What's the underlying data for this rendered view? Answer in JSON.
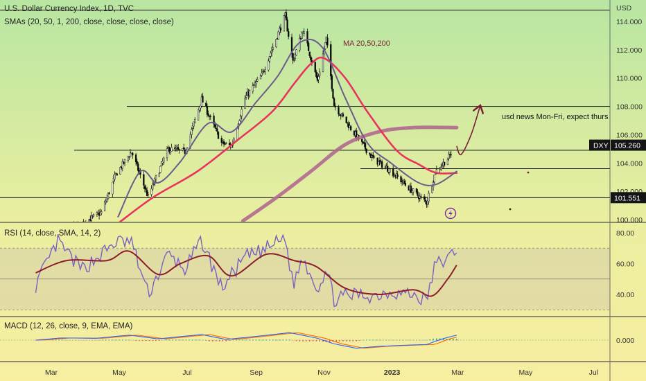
{
  "header": {
    "title": "U.S. Dollar Currency Index, 1D, TVC",
    "sma_legend": "SMAs (20, 50, 1, 200, close, close, close, close)"
  },
  "price_scale": {
    "currency": "USD",
    "ticks": [
      {
        "value": 114,
        "label": "114.000"
      },
      {
        "value": 112,
        "label": "112.000"
      },
      {
        "value": 110,
        "label": "110.000"
      },
      {
        "value": 108,
        "label": "108.000"
      },
      {
        "value": 106,
        "label": "106.000"
      },
      {
        "value": 104,
        "label": "104.000"
      },
      {
        "value": 102,
        "label": "102.000"
      },
      {
        "value": 100,
        "label": "100.000"
      }
    ],
    "ylim": [
      99.9,
      115.4
    ],
    "symbol_badge": {
      "symbol": "DXY",
      "price": "105.260",
      "value": 105.26
    },
    "level_badge": {
      "label": "101.551",
      "value": 101.551
    }
  },
  "rsi_panel": {
    "legend": "RSI (14, close, SMA, 14, 2)",
    "ticks": [
      {
        "value": 80,
        "label": "80.00"
      },
      {
        "value": 60,
        "label": "60.00"
      },
      {
        "value": 40,
        "label": "40.00"
      }
    ],
    "ylim": [
      29,
      85
    ],
    "band": [
      70,
      30
    ],
    "midline": 50
  },
  "macd_panel": {
    "legend": "MACD (12, 26, close, 9, EMA, EMA)",
    "ticks": [
      {
        "value": 0,
        "label": "0.000"
      }
    ]
  },
  "time_axis": {
    "labels": [
      {
        "label": "Mar",
        "bold": false
      },
      {
        "label": "May",
        "bold": false
      },
      {
        "label": "Jul",
        "bold": false
      },
      {
        "label": "Sep",
        "bold": false
      },
      {
        "label": "Nov",
        "bold": false
      },
      {
        "label": "2023",
        "bold": true
      },
      {
        "label": "Mar",
        "bold": false
      },
      {
        "label": "May",
        "bold": false
      },
      {
        "label": "Jul",
        "bold": false
      }
    ]
  },
  "annotations": {
    "ma_label": "MA 20,50,200",
    "news_note": "usd news Mon-Fri, expect thurs"
  },
  "horizontal_levels": [
    114.8,
    108.0,
    104.9,
    103.6,
    101.55
  ],
  "colors": {
    "up_candle": "#0a0a0a",
    "down_candle": "#0a0a0a",
    "sma20": "#6b5b8c",
    "sma50": "#e8335f",
    "sma200": "#b0698f",
    "rsi": "#7b5fc4",
    "rsi_ma": "#8b1e28",
    "macd_line": "#2962ff",
    "signal_line": "#ff6d00",
    "hist_pos": "#26a69a",
    "hist_neg": "#ef5350",
    "annotation": "#7a1f35"
  },
  "chart_data": {
    "type": "candlestick",
    "anchors": [
      {
        "date": "2022-02-15",
        "close": 95.8
      },
      {
        "date": "2022-03-07",
        "close": 99.0
      },
      {
        "date": "2022-03-28",
        "close": 99.7
      },
      {
        "date": "2022-04-15",
        "close": 100.5
      },
      {
        "date": "2022-04-28",
        "close": 103.2
      },
      {
        "date": "2022-05-12",
        "close": 104.8
      },
      {
        "date": "2022-05-27",
        "close": 101.6
      },
      {
        "date": "2022-06-14",
        "close": 105.0
      },
      {
        "date": "2022-06-29",
        "close": 104.8
      },
      {
        "date": "2022-07-14",
        "close": 108.5
      },
      {
        "date": "2022-08-01",
        "close": 105.4
      },
      {
        "date": "2022-08-10",
        "close": 105.2
      },
      {
        "date": "2022-08-22",
        "close": 108.6
      },
      {
        "date": "2022-09-06",
        "close": 110.2
      },
      {
        "date": "2022-09-27",
        "close": 114.4
      },
      {
        "date": "2022-10-04",
        "close": 111.2
      },
      {
        "date": "2022-10-13",
        "close": 113.4
      },
      {
        "date": "2022-10-26",
        "close": 109.8
      },
      {
        "date": "2022-11-03",
        "close": 112.8
      },
      {
        "date": "2022-11-10",
        "close": 108.1
      },
      {
        "date": "2022-11-30",
        "close": 105.9
      },
      {
        "date": "2022-12-15",
        "close": 104.3
      },
      {
        "date": "2022-12-30",
        "close": 103.5
      },
      {
        "date": "2023-01-18",
        "close": 102.1
      },
      {
        "date": "2023-02-01",
        "close": 101.2
      },
      {
        "date": "2023-02-09",
        "close": 103.4
      },
      {
        "date": "2023-02-21",
        "close": 104.4
      },
      {
        "date": "2023-02-28",
        "close": 105.26
      }
    ],
    "sma20": [
      {
        "date": "2022-04-30",
        "value": 100.2
      },
      {
        "date": "2022-05-20",
        "value": 103.4
      },
      {
        "date": "2022-06-05",
        "value": 102.6
      },
      {
        "date": "2022-06-25",
        "value": 104.1
      },
      {
        "date": "2022-07-20",
        "value": 106.8
      },
      {
        "date": "2022-08-10",
        "value": 106.2
      },
      {
        "date": "2022-09-01",
        "value": 108.3
      },
      {
        "date": "2022-09-20",
        "value": 110.1
      },
      {
        "date": "2022-10-10",
        "value": 112.5
      },
      {
        "date": "2022-10-30",
        "value": 112.2
      },
      {
        "date": "2022-11-20",
        "value": 108.6
      },
      {
        "date": "2022-12-10",
        "value": 105.4
      },
      {
        "date": "2022-12-31",
        "value": 104.0
      },
      {
        "date": "2023-01-25",
        "value": 102.6
      },
      {
        "date": "2023-02-10",
        "value": 102.5
      },
      {
        "date": "2023-02-28",
        "value": 103.4
      }
    ],
    "sma50": [
      {
        "date": "2022-05-01",
        "value": 99.8
      },
      {
        "date": "2022-06-01",
        "value": 101.6
      },
      {
        "date": "2022-07-10",
        "value": 103.4
      },
      {
        "date": "2022-08-15",
        "value": 105.6
      },
      {
        "date": "2022-09-15",
        "value": 107.6
      },
      {
        "date": "2022-10-05",
        "value": 109.6
      },
      {
        "date": "2022-10-20",
        "value": 111.0
      },
      {
        "date": "2022-11-01",
        "value": 111.4
      },
      {
        "date": "2022-11-20",
        "value": 110.0
      },
      {
        "date": "2022-12-10",
        "value": 107.6
      },
      {
        "date": "2023-01-05",
        "value": 104.9
      },
      {
        "date": "2023-01-25",
        "value": 103.9
      },
      {
        "date": "2023-02-10",
        "value": 103.3
      },
      {
        "date": "2023-02-28",
        "value": 103.3
      }
    ],
    "sma200": [
      {
        "date": "2022-08-20",
        "value": 99.9
      },
      {
        "date": "2022-09-20",
        "value": 101.6
      },
      {
        "date": "2022-10-20",
        "value": 103.4
      },
      {
        "date": "2022-11-20",
        "value": 105.3
      },
      {
        "date": "2022-12-20",
        "value": 106.2
      },
      {
        "date": "2023-01-20",
        "value": 106.5
      },
      {
        "date": "2023-02-28",
        "value": 106.5
      }
    ],
    "projection": [
      {
        "date": "2023-02-28",
        "value": 105.2
      },
      {
        "date": "2023-03-04",
        "value": 104.6
      },
      {
        "date": "2023-03-13",
        "value": 106.0
      },
      {
        "date": "2023-03-21",
        "value": 108.0
      }
    ],
    "rsi_anchors": [
      {
        "date": "2022-02-15",
        "value": 46
      },
      {
        "date": "2022-03-07",
        "value": 74
      },
      {
        "date": "2022-03-28",
        "value": 56
      },
      {
        "date": "2022-04-15",
        "value": 66
      },
      {
        "date": "2022-04-28",
        "value": 74
      },
      {
        "date": "2022-05-12",
        "value": 74
      },
      {
        "date": "2022-05-27",
        "value": 40
      },
      {
        "date": "2022-06-14",
        "value": 66
      },
      {
        "date": "2022-06-29",
        "value": 56
      },
      {
        "date": "2022-07-14",
        "value": 75
      },
      {
        "date": "2022-08-01",
        "value": 44
      },
      {
        "date": "2022-08-22",
        "value": 64
      },
      {
        "date": "2022-09-06",
        "value": 68
      },
      {
        "date": "2022-09-27",
        "value": 77
      },
      {
        "date": "2022-10-04",
        "value": 46
      },
      {
        "date": "2022-10-13",
        "value": 64
      },
      {
        "date": "2022-10-26",
        "value": 44
      },
      {
        "date": "2022-11-03",
        "value": 56
      },
      {
        "date": "2022-11-10",
        "value": 37
      },
      {
        "date": "2022-11-30",
        "value": 40
      },
      {
        "date": "2022-12-15",
        "value": 39
      },
      {
        "date": "2022-12-30",
        "value": 42
      },
      {
        "date": "2023-01-18",
        "value": 40
      },
      {
        "date": "2023-02-01",
        "value": 36
      },
      {
        "date": "2023-02-09",
        "value": 60
      },
      {
        "date": "2023-02-21",
        "value": 63
      },
      {
        "date": "2023-02-28",
        "value": 70
      }
    ],
    "rsi_ma": [
      {
        "date": "2022-02-15",
        "value": 54
      },
      {
        "date": "2022-03-15",
        "value": 62
      },
      {
        "date": "2022-04-20",
        "value": 62
      },
      {
        "date": "2022-05-10",
        "value": 68
      },
      {
        "date": "2022-06-05",
        "value": 53
      },
      {
        "date": "2022-06-25",
        "value": 60
      },
      {
        "date": "2022-07-20",
        "value": 65
      },
      {
        "date": "2022-08-10",
        "value": 52
      },
      {
        "date": "2022-09-10",
        "value": 66
      },
      {
        "date": "2022-10-05",
        "value": 62
      },
      {
        "date": "2022-10-25",
        "value": 58
      },
      {
        "date": "2022-11-20",
        "value": 44
      },
      {
        "date": "2022-12-20",
        "value": 40
      },
      {
        "date": "2023-01-20",
        "value": 43
      },
      {
        "date": "2023-02-06",
        "value": 39
      },
      {
        "date": "2023-02-20",
        "value": 50
      },
      {
        "date": "2023-02-28",
        "value": 59
      }
    ],
    "macd_anchors": [
      {
        "date": "2022-02-15",
        "value": 0.0
      },
      {
        "date": "2022-03-10",
        "value": 0.35
      },
      {
        "date": "2022-04-10",
        "value": 0.3
      },
      {
        "date": "2022-05-10",
        "value": 0.8
      },
      {
        "date": "2022-06-05",
        "value": 0.2
      },
      {
        "date": "2022-07-14",
        "value": 0.9
      },
      {
        "date": "2022-08-05",
        "value": 0.1
      },
      {
        "date": "2022-09-01",
        "value": 0.6
      },
      {
        "date": "2022-10-01",
        "value": 1.2
      },
      {
        "date": "2022-10-26",
        "value": 0.3
      },
      {
        "date": "2022-11-10",
        "value": -0.6
      },
      {
        "date": "2022-11-30",
        "value": -1.3
      },
      {
        "date": "2022-12-20",
        "value": -1.0
      },
      {
        "date": "2023-01-15",
        "value": -0.8
      },
      {
        "date": "2023-02-01",
        "value": -0.7
      },
      {
        "date": "2023-02-15",
        "value": 0.2
      },
      {
        "date": "2023-02-28",
        "value": 0.8
      }
    ]
  }
}
